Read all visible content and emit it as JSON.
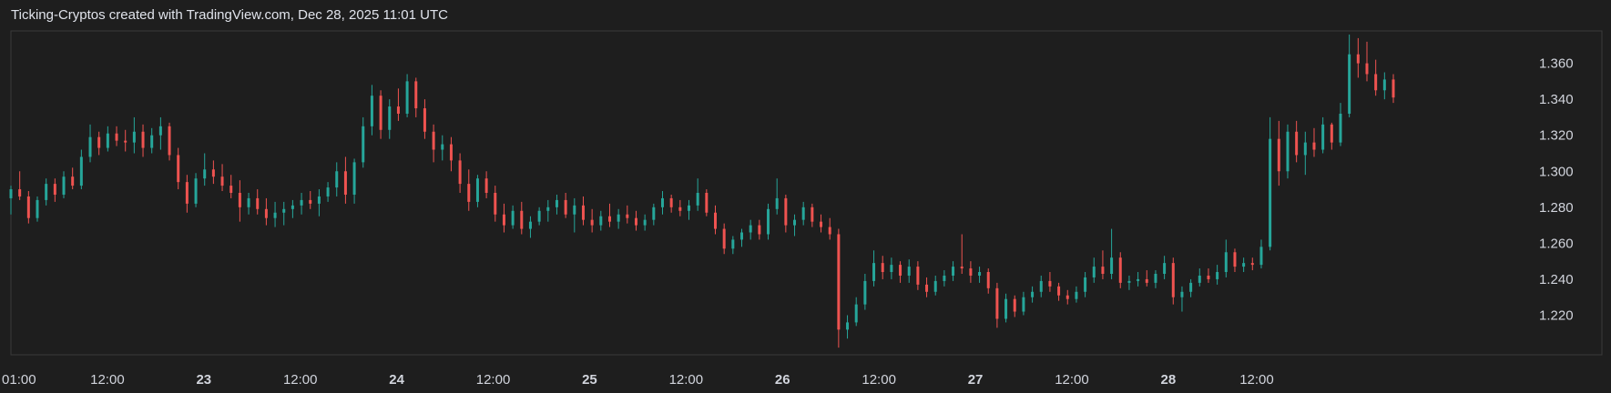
{
  "header": {
    "caption": "Ticking-Cryptos created with TradingView.com, Dec 28, 2025 11:01 UTC"
  },
  "colors": {
    "background": "#1e1e1e",
    "up": "#26a69a",
    "down": "#ef5350",
    "frame": "#3a3a3a",
    "axis_text": "#d1d4dc"
  },
  "chart_data": {
    "type": "candlestick",
    "title": "",
    "ylim": [
      1.198,
      1.378
    ],
    "xlim": [
      0,
      172
    ],
    "y_ticks": [
      "1.360",
      "1.340",
      "1.320",
      "1.300",
      "1.280",
      "1.260",
      "1.240",
      "1.220"
    ],
    "x_ticks": [
      {
        "label": "01:00",
        "x": 1,
        "bold": false
      },
      {
        "label": "12:00",
        "x": 12,
        "bold": false
      },
      {
        "label": "23",
        "x": 24,
        "bold": true
      },
      {
        "label": "12:00",
        "x": 36,
        "bold": false
      },
      {
        "label": "24",
        "x": 48,
        "bold": true
      },
      {
        "label": "12:00",
        "x": 60,
        "bold": false
      },
      {
        "label": "25",
        "x": 72,
        "bold": true
      },
      {
        "label": "12:00",
        "x": 84,
        "bold": false
      },
      {
        "label": "26",
        "x": 96,
        "bold": true
      },
      {
        "label": "12:00",
        "x": 108,
        "bold": false
      },
      {
        "label": "27",
        "x": 120,
        "bold": true
      },
      {
        "label": "12:00",
        "x": 132,
        "bold": false
      },
      {
        "label": "28",
        "x": 144,
        "bold": true
      },
      {
        "label": "12:00",
        "x": 155,
        "bold": false
      }
    ],
    "candles": [
      [
        1.285,
        1.292,
        1.276,
        1.29
      ],
      [
        1.29,
        1.3,
        1.284,
        1.286
      ],
      [
        1.286,
        1.289,
        1.271,
        1.274
      ],
      [
        1.274,
        1.286,
        1.272,
        1.284
      ],
      [
        1.284,
        1.296,
        1.281,
        1.293
      ],
      [
        1.293,
        1.296,
        1.283,
        1.287
      ],
      [
        1.287,
        1.3,
        1.285,
        1.297
      ],
      [
        1.297,
        1.302,
        1.29,
        1.292
      ],
      [
        1.292,
        1.312,
        1.29,
        1.308
      ],
      [
        1.308,
        1.326,
        1.305,
        1.319
      ],
      [
        1.319,
        1.322,
        1.309,
        1.313
      ],
      [
        1.313,
        1.325,
        1.311,
        1.321
      ],
      [
        1.321,
        1.325,
        1.314,
        1.317
      ],
      [
        1.317,
        1.323,
        1.311,
        1.316
      ],
      [
        1.316,
        1.33,
        1.31,
        1.322
      ],
      [
        1.322,
        1.326,
        1.308,
        1.313
      ],
      [
        1.313,
        1.324,
        1.31,
        1.32
      ],
      [
        1.32,
        1.33,
        1.312,
        1.325
      ],
      [
        1.325,
        1.327,
        1.306,
        1.309
      ],
      [
        1.309,
        1.313,
        1.29,
        1.294
      ],
      [
        1.294,
        1.298,
        1.277,
        1.282
      ],
      [
        1.282,
        1.299,
        1.28,
        1.296
      ],
      [
        1.296,
        1.31,
        1.292,
        1.301
      ],
      [
        1.301,
        1.306,
        1.293,
        1.297
      ],
      [
        1.297,
        1.304,
        1.289,
        1.292
      ],
      [
        1.292,
        1.298,
        1.285,
        1.288
      ],
      [
        1.288,
        1.295,
        1.272,
        1.28
      ],
      [
        1.28,
        1.288,
        1.276,
        1.285
      ],
      [
        1.285,
        1.29,
        1.276,
        1.279
      ],
      [
        1.279,
        1.285,
        1.27,
        1.274
      ],
      [
        1.274,
        1.283,
        1.269,
        1.277
      ],
      [
        1.277,
        1.283,
        1.27,
        1.279
      ],
      [
        1.279,
        1.284,
        1.274,
        1.281
      ],
      [
        1.281,
        1.288,
        1.276,
        1.284
      ],
      [
        1.284,
        1.289,
        1.279,
        1.282
      ],
      [
        1.282,
        1.29,
        1.275,
        1.286
      ],
      [
        1.286,
        1.294,
        1.283,
        1.291
      ],
      [
        1.291,
        1.305,
        1.286,
        1.3
      ],
      [
        1.3,
        1.308,
        1.282,
        1.287
      ],
      [
        1.287,
        1.307,
        1.282,
        1.305
      ],
      [
        1.305,
        1.33,
        1.302,
        1.325
      ],
      [
        1.325,
        1.348,
        1.32,
        1.342
      ],
      [
        1.342,
        1.345,
        1.318,
        1.323
      ],
      [
        1.323,
        1.34,
        1.318,
        1.336
      ],
      [
        1.336,
        1.346,
        1.328,
        1.332
      ],
      [
        1.332,
        1.354,
        1.33,
        1.35
      ],
      [
        1.35,
        1.352,
        1.33,
        1.335
      ],
      [
        1.335,
        1.34,
        1.318,
        1.322
      ],
      [
        1.322,
        1.326,
        1.305,
        1.312
      ],
      [
        1.312,
        1.32,
        1.306,
        1.315
      ],
      [
        1.315,
        1.319,
        1.3,
        1.306
      ],
      [
        1.306,
        1.31,
        1.288,
        1.293
      ],
      [
        1.293,
        1.301,
        1.278,
        1.283
      ],
      [
        1.283,
        1.298,
        1.28,
        1.296
      ],
      [
        1.296,
        1.3,
        1.285,
        1.288
      ],
      [
        1.288,
        1.292,
        1.272,
        1.276
      ],
      [
        1.276,
        1.282,
        1.266,
        1.27
      ],
      [
        1.27,
        1.281,
        1.268,
        1.278
      ],
      [
        1.278,
        1.283,
        1.265,
        1.268
      ],
      [
        1.268,
        1.275,
        1.263,
        1.272
      ],
      [
        1.272,
        1.28,
        1.27,
        1.278
      ],
      [
        1.278,
        1.284,
        1.272,
        1.28
      ],
      [
        1.28,
        1.287,
        1.276,
        1.284
      ],
      [
        1.284,
        1.288,
        1.274,
        1.276
      ],
      [
        1.276,
        1.285,
        1.266,
        1.281
      ],
      [
        1.281,
        1.286,
        1.27,
        1.273
      ],
      [
        1.273,
        1.279,
        1.266,
        1.27
      ],
      [
        1.27,
        1.278,
        1.267,
        1.275
      ],
      [
        1.275,
        1.282,
        1.269,
        1.272
      ],
      [
        1.272,
        1.279,
        1.268,
        1.276
      ],
      [
        1.276,
        1.281,
        1.271,
        1.274
      ],
      [
        1.274,
        1.278,
        1.267,
        1.27
      ],
      [
        1.27,
        1.276,
        1.267,
        1.273
      ],
      [
        1.273,
        1.282,
        1.27,
        1.28
      ],
      [
        1.28,
        1.289,
        1.276,
        1.285
      ],
      [
        1.285,
        1.287,
        1.277,
        1.28
      ],
      [
        1.28,
        1.284,
        1.275,
        1.278
      ],
      [
        1.278,
        1.284,
        1.273,
        1.281
      ],
      [
        1.281,
        1.296,
        1.278,
        1.288
      ],
      [
        1.288,
        1.29,
        1.275,
        1.277
      ],
      [
        1.277,
        1.281,
        1.265,
        1.268
      ],
      [
        1.268,
        1.271,
        1.254,
        1.257
      ],
      [
        1.257,
        1.264,
        1.254,
        1.262
      ],
      [
        1.262,
        1.268,
        1.258,
        1.266
      ],
      [
        1.266,
        1.273,
        1.262,
        1.27
      ],
      [
        1.27,
        1.273,
        1.262,
        1.265
      ],
      [
        1.265,
        1.282,
        1.262,
        1.279
      ],
      [
        1.279,
        1.296,
        1.276,
        1.285
      ],
      [
        1.285,
        1.287,
        1.266,
        1.27
      ],
      [
        1.27,
        1.276,
        1.264,
        1.273
      ],
      [
        1.273,
        1.283,
        1.27,
        1.28
      ],
      [
        1.28,
        1.282,
        1.269,
        1.272
      ],
      [
        1.272,
        1.276,
        1.266,
        1.269
      ],
      [
        1.269,
        1.274,
        1.262,
        1.265
      ],
      [
        1.265,
        1.268,
        1.202,
        1.212
      ],
      [
        1.212,
        1.22,
        1.207,
        1.216
      ],
      [
        1.216,
        1.23,
        1.214,
        1.226
      ],
      [
        1.226,
        1.243,
        1.223,
        1.239
      ],
      [
        1.239,
        1.256,
        1.236,
        1.249
      ],
      [
        1.249,
        1.253,
        1.24,
        1.244
      ],
      [
        1.244,
        1.252,
        1.24,
        1.248
      ],
      [
        1.248,
        1.25,
        1.238,
        1.242
      ],
      [
        1.242,
        1.251,
        1.238,
        1.247
      ],
      [
        1.247,
        1.25,
        1.234,
        1.237
      ],
      [
        1.237,
        1.241,
        1.23,
        1.233
      ],
      [
        1.233,
        1.242,
        1.231,
        1.239
      ],
      [
        1.239,
        1.245,
        1.236,
        1.242
      ],
      [
        1.242,
        1.25,
        1.239,
        1.247
      ],
      [
        1.247,
        1.265,
        1.243,
        1.246
      ],
      [
        1.246,
        1.25,
        1.238,
        1.242
      ],
      [
        1.242,
        1.247,
        1.238,
        1.244
      ],
      [
        1.244,
        1.246,
        1.232,
        1.235
      ],
      [
        1.235,
        1.238,
        1.213,
        1.218
      ],
      [
        1.218,
        1.232,
        1.216,
        1.229
      ],
      [
        1.229,
        1.231,
        1.219,
        1.222
      ],
      [
        1.222,
        1.233,
        1.22,
        1.23
      ],
      [
        1.23,
        1.236,
        1.227,
        1.233
      ],
      [
        1.233,
        1.242,
        1.23,
        1.239
      ],
      [
        1.239,
        1.244,
        1.233,
        1.236
      ],
      [
        1.236,
        1.238,
        1.228,
        1.231
      ],
      [
        1.231,
        1.234,
        1.226,
        1.229
      ],
      [
        1.229,
        1.236,
        1.227,
        1.233
      ],
      [
        1.233,
        1.244,
        1.23,
        1.241
      ],
      [
        1.241,
        1.252,
        1.238,
        1.247
      ],
      [
        1.247,
        1.256,
        1.24,
        1.243
      ],
      [
        1.243,
        1.268,
        1.24,
        1.252
      ],
      [
        1.252,
        1.255,
        1.235,
        1.238
      ],
      [
        1.238,
        1.242,
        1.234,
        1.239
      ],
      [
        1.239,
        1.244,
        1.236,
        1.24
      ],
      [
        1.24,
        1.245,
        1.236,
        1.238
      ],
      [
        1.238,
        1.245,
        1.235,
        1.243
      ],
      [
        1.243,
        1.253,
        1.24,
        1.249
      ],
      [
        1.249,
        1.252,
        1.226,
        1.23
      ],
      [
        1.23,
        1.236,
        1.222,
        1.233
      ],
      [
        1.233,
        1.24,
        1.23,
        1.238
      ],
      [
        1.238,
        1.246,
        1.236,
        1.242
      ],
      [
        1.242,
        1.246,
        1.238,
        1.24
      ],
      [
        1.24,
        1.248,
        1.237,
        1.244
      ],
      [
        1.244,
        1.262,
        1.241,
        1.255
      ],
      [
        1.255,
        1.257,
        1.244,
        1.247
      ],
      [
        1.247,
        1.252,
        1.244,
        1.249
      ],
      [
        1.249,
        1.252,
        1.245,
        1.248
      ],
      [
        1.248,
        1.262,
        1.246,
        1.258
      ],
      [
        1.258,
        1.33,
        1.256,
        1.318
      ],
      [
        1.318,
        1.328,
        1.292,
        1.3
      ],
      [
        1.3,
        1.326,
        1.296,
        1.322
      ],
      [
        1.322,
        1.328,
        1.305,
        1.309
      ],
      [
        1.309,
        1.322,
        1.298,
        1.316
      ],
      [
        1.316,
        1.324,
        1.308,
        1.312
      ],
      [
        1.312,
        1.33,
        1.31,
        1.326
      ],
      [
        1.326,
        1.327,
        1.312,
        1.316
      ],
      [
        1.316,
        1.338,
        1.314,
        1.332
      ],
      [
        1.332,
        1.376,
        1.33,
        1.365
      ],
      [
        1.365,
        1.374,
        1.352,
        1.36
      ],
      [
        1.36,
        1.372,
        1.35,
        1.354
      ],
      [
        1.354,
        1.362,
        1.342,
        1.345
      ],
      [
        1.345,
        1.355,
        1.34,
        1.351
      ],
      [
        1.351,
        1.354,
        1.338,
        1.341
      ]
    ]
  }
}
